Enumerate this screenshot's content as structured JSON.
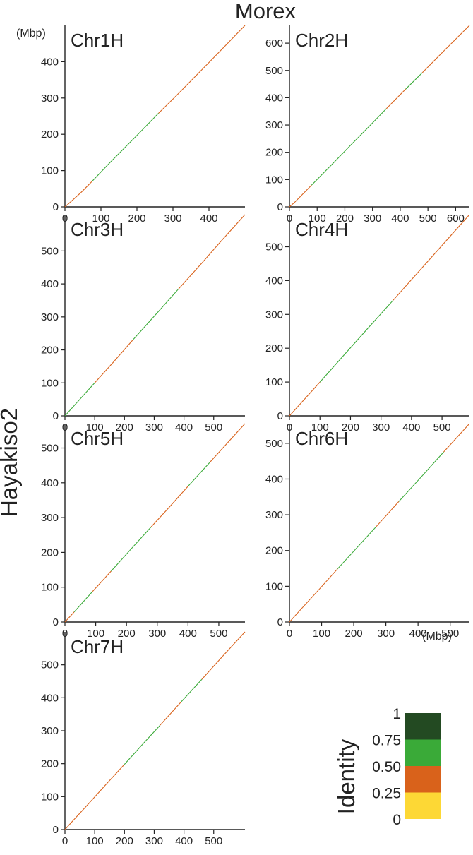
{
  "header": {
    "title": "Morex",
    "y_title": "Hayakiso2"
  },
  "units": {
    "y_unit": "(Mbp)",
    "x_unit": "(Mbp)"
  },
  "legend": {
    "title": "Identity",
    "bands": [
      {
        "label": "1",
        "color": "#234a22"
      },
      {
        "label": "0.75",
        "color": "#3aaa38"
      },
      {
        "label": "0.50",
        "color": "#d9621b"
      },
      {
        "label": "0.25",
        "color": "#fdd835"
      },
      {
        "label": "0",
        "color": ""
      }
    ]
  },
  "chart_data": [
    {
      "type": "scatter",
      "title": "Chr1H",
      "x_ticks": [
        0,
        100,
        200,
        300,
        400
      ],
      "y_ticks": [
        0,
        100,
        200,
        300,
        400
      ],
      "xlim": [
        0,
        500
      ],
      "ylim": [
        0,
        500
      ],
      "series": [
        {
          "x": [
            0,
            15,
            45,
            75,
            120,
            200,
            260,
            305,
            330,
            420,
            500
          ],
          "y": [
            0,
            13,
            40,
            70,
            117,
            197,
            258,
            302,
            327,
            418,
            500
          ],
          "colors": [
            "#d9621b",
            "#d9621b",
            "#d9621b",
            "#d9621b",
            "#3aaa38",
            "#3aaa38",
            "#3aaa38",
            "#d9621b",
            "#d9621b",
            "#d9621b",
            "#d9621b"
          ]
        }
      ]
    },
    {
      "type": "scatter",
      "title": "Chr2H",
      "x_ticks": [
        0,
        100,
        200,
        300,
        400,
        500,
        600
      ],
      "y_ticks": [
        0,
        100,
        200,
        300,
        400,
        500,
        600
      ],
      "xlim": [
        0,
        650
      ],
      "ylim": [
        0,
        665
      ],
      "series": [
        {
          "x": [
            0,
            20,
            80,
            150,
            220,
            280,
            350,
            420,
            480,
            560,
            650
          ],
          "y": [
            0,
            18,
            80,
            152,
            225,
            287,
            360,
            432,
            492,
            574,
            665
          ],
          "colors": [
            "#d9621b",
            "#d9621b",
            "#d9621b",
            "#3aaa38",
            "#3aaa38",
            "#3aaa38",
            "#3aaa38",
            "#d9621b",
            "#3aaa38",
            "#d9621b",
            "#d9621b"
          ]
        }
      ]
    },
    {
      "type": "scatter",
      "title": "Chr3H",
      "x_ticks": [
        0,
        100,
        200,
        300,
        400,
        500
      ],
      "y_ticks": [
        0,
        100,
        200,
        300,
        400,
        500
      ],
      "xlim": [
        0,
        605
      ],
      "ylim": [
        0,
        610
      ],
      "series": [
        {
          "x": [
            0,
            40,
            100,
            160,
            230,
            300,
            380,
            460,
            520,
            605
          ],
          "y": [
            0,
            40,
            100,
            160,
            232,
            302,
            383,
            463,
            525,
            610
          ],
          "colors": [
            "#3aaa38",
            "#3aaa38",
            "#3aaa38",
            "#d9621b",
            "#d9621b",
            "#3aaa38",
            "#3aaa38",
            "#d9621b",
            "#d9621b",
            "#d9621b"
          ]
        }
      ]
    },
    {
      "type": "scatter",
      "title": "Chr4H",
      "x_ticks": [
        0,
        100,
        200,
        300,
        400,
        500
      ],
      "y_ticks": [
        0,
        100,
        200,
        300,
        400,
        500
      ],
      "xlim": [
        0,
        590
      ],
      "ylim": [
        0,
        595
      ],
      "series": [
        {
          "x": [
            0,
            40,
            100,
            180,
            260,
            340,
            420,
            500,
            590
          ],
          "y": [
            0,
            40,
            100,
            181,
            262,
            342,
            423,
            504,
            595
          ],
          "colors": [
            "#d9621b",
            "#d9621b",
            "#d9621b",
            "#3aaa38",
            "#3aaa38",
            "#3aaa38",
            "#d9621b",
            "#d9621b",
            "#d9621b"
          ]
        }
      ]
    },
    {
      "type": "scatter",
      "title": "Chr5H",
      "x_ticks": [
        0,
        100,
        200,
        300,
        400,
        500
      ],
      "y_ticks": [
        0,
        100,
        200,
        300,
        400,
        500
      ],
      "xlim": [
        0,
        585
      ],
      "ylim": [
        0,
        570
      ],
      "series": [
        {
          "x": [
            0,
            30,
            90,
            150,
            210,
            280,
            340,
            400,
            470,
            585
          ],
          "y": [
            0,
            29,
            88,
            146,
            205,
            273,
            331,
            390,
            458,
            570
          ],
          "colors": [
            "#d9621b",
            "#d9621b",
            "#3aaa38",
            "#d9621b",
            "#3aaa38",
            "#3aaa38",
            "#d9621b",
            "#d9621b",
            "#3aaa38",
            "#d9621b"
          ]
        }
      ]
    },
    {
      "type": "scatter",
      "title": "Chr6H",
      "x_ticks": [
        0,
        100,
        200,
        300,
        400,
        500
      ],
      "y_ticks": [
        0,
        100,
        200,
        300,
        400,
        500
      ],
      "xlim": [
        0,
        560
      ],
      "ylim": [
        0,
        555
      ],
      "series": [
        {
          "x": [
            0,
            30,
            90,
            150,
            210,
            270,
            340,
            410,
            480,
            560
          ],
          "y": [
            0,
            30,
            89,
            149,
            208,
            267,
            337,
            406,
            476,
            555
          ],
          "colors": [
            "#d9621b",
            "#d9621b",
            "#d9621b",
            "#d9621b",
            "#3aaa38",
            "#3aaa38",
            "#d9621b",
            "#3aaa38",
            "#3aaa38",
            "#d9621b"
          ]
        }
      ]
    },
    {
      "type": "scatter",
      "title": "Chr7H",
      "x_ticks": [
        0,
        100,
        200,
        300,
        400,
        500
      ],
      "y_ticks": [
        0,
        100,
        200,
        300,
        400,
        500
      ],
      "xlim": [
        0,
        605
      ],
      "ylim": [
        0,
        600
      ],
      "series": [
        {
          "x": [
            0,
            30,
            80,
            140,
            200,
            260,
            320,
            390,
            460,
            530,
            605
          ],
          "y": [
            0,
            30,
            79,
            139,
            198,
            258,
            317,
            387,
            456,
            526,
            600
          ],
          "colors": [
            "#3aaa38",
            "#d9621b",
            "#d9621b",
            "#d9621b",
            "#d9621b",
            "#3aaa38",
            "#3aaa38",
            "#d9621b",
            "#3aaa38",
            "#d9621b",
            "#d9621b"
          ]
        }
      ]
    }
  ]
}
